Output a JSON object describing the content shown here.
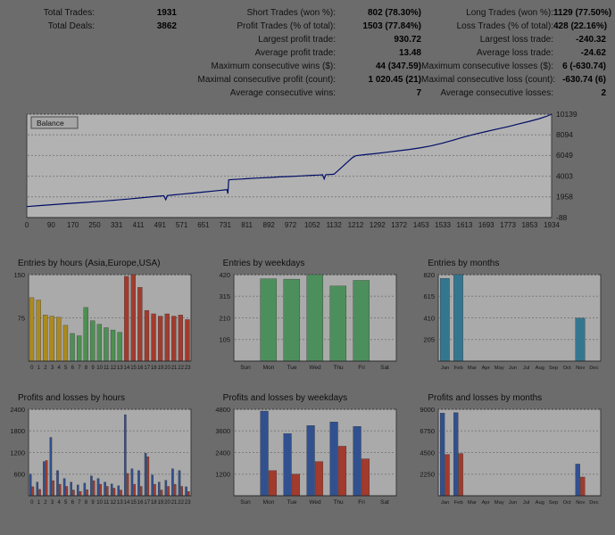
{
  "report": {
    "stats_rows": [
      {
        "l1": "Total Trades:",
        "v1": "1931",
        "l2": "Short Trades (won %):",
        "v2": "802 (78.30%)",
        "l3": "Long Trades (won %):",
        "v3": "1129 (77.50%)"
      },
      {
        "l1": "Total Deals:",
        "v1": "3862",
        "l2": "Profit Trades (% of total):",
        "v2": "1503 (77.84%)",
        "l3": "Loss Trades (% of total):",
        "v3": "428 (22.16%)"
      },
      {
        "l1": "",
        "v1": "",
        "l2": "Largest profit trade:",
        "v2": "930.72",
        "l3": "Largest loss trade:",
        "v3": "-240.32"
      },
      {
        "l1": "",
        "v1": "",
        "l2": "Average profit trade:",
        "v2": "13.48",
        "l3": "Average loss trade:",
        "v3": "-24.62"
      },
      {
        "l1": "",
        "v1": "",
        "l2": "Maximum consecutive wins ($):",
        "v2": "44 (347.59)",
        "l3": "Maximum consecutive losses ($):",
        "v3": "6 (-630.74)"
      },
      {
        "l1": "",
        "v1": "",
        "l2": "Maximal consecutive profit (count):",
        "v2": "1 020.45 (21)",
        "l3": "Maximal consecutive loss (count):",
        "v3": "-630.74 (6)"
      },
      {
        "l1": "",
        "v1": "",
        "l2": "Average consecutive wins:",
        "v2": "7",
        "l3": "Average consecutive losses:",
        "v3": "2"
      }
    ]
  },
  "chart_data": [
    {
      "type": "line",
      "title": "Balance",
      "legend": "Balance",
      "line_color": "#000d66",
      "xlim": [
        0,
        1934
      ],
      "ylim": [
        -88,
        10139
      ],
      "x_ticks": [
        0,
        90,
        170,
        250,
        331,
        411,
        491,
        571,
        651,
        731,
        811,
        892,
        972,
        1052,
        1132,
        1212,
        1292,
        1372,
        1453,
        1533,
        1613,
        1693,
        1773,
        1853,
        1934
      ],
      "y_ticks": [
        -88,
        1958,
        4003,
        6049,
        8094,
        10139
      ],
      "points": [
        [
          0,
          1000
        ],
        [
          45,
          1090
        ],
        [
          90,
          1180
        ],
        [
          135,
          1270
        ],
        [
          170,
          1330
        ],
        [
          210,
          1400
        ],
        [
          250,
          1480
        ],
        [
          290,
          1560
        ],
        [
          331,
          1650
        ],
        [
          370,
          1740
        ],
        [
          411,
          1840
        ],
        [
          450,
          1940
        ],
        [
          470,
          1990
        ],
        [
          491,
          2040
        ],
        [
          505,
          2070
        ],
        [
          512,
          1680
        ],
        [
          518,
          2090
        ],
        [
          540,
          2150
        ],
        [
          571,
          2230
        ],
        [
          610,
          2330
        ],
        [
          651,
          2430
        ],
        [
          690,
          2540
        ],
        [
          720,
          2620
        ],
        [
          731,
          2650
        ],
        [
          738,
          2660
        ],
        [
          741,
          2280
        ],
        [
          744,
          3640
        ],
        [
          760,
          3680
        ],
        [
          790,
          3720
        ],
        [
          811,
          3760
        ],
        [
          850,
          3820
        ],
        [
          892,
          3870
        ],
        [
          930,
          3930
        ],
        [
          972,
          3980
        ],
        [
          1010,
          4030
        ],
        [
          1052,
          4090
        ],
        [
          1075,
          4120
        ],
        [
          1090,
          4140
        ],
        [
          1096,
          3730
        ],
        [
          1102,
          4150
        ],
        [
          1132,
          4200
        ],
        [
          1150,
          4620
        ],
        [
          1168,
          5060
        ],
        [
          1185,
          5480
        ],
        [
          1200,
          5840
        ],
        [
          1212,
          6020
        ],
        [
          1240,
          6120
        ],
        [
          1292,
          6260
        ],
        [
          1340,
          6420
        ],
        [
          1372,
          6520
        ],
        [
          1410,
          6650
        ],
        [
          1453,
          6820
        ],
        [
          1490,
          7000
        ],
        [
          1533,
          7280
        ],
        [
          1570,
          7560
        ],
        [
          1613,
          7900
        ],
        [
          1650,
          8150
        ],
        [
          1693,
          8420
        ],
        [
          1730,
          8650
        ],
        [
          1773,
          8900
        ],
        [
          1810,
          9150
        ],
        [
          1853,
          9430
        ],
        [
          1890,
          9700
        ],
        [
          1915,
          9920
        ],
        [
          1934,
          10139
        ]
      ]
    },
    {
      "type": "bar",
      "title": "Entries by hours (Asia,Europe,USA)",
      "ylim": [
        0,
        150
      ],
      "y_ticks": [
        75,
        150
      ],
      "categories": [
        "0",
        "1",
        "2",
        "3",
        "4",
        "5",
        "6",
        "7",
        "8",
        "9",
        "10",
        "11",
        "12",
        "13",
        "14",
        "15",
        "16",
        "17",
        "18",
        "19",
        "20",
        "21",
        "22",
        "23"
      ],
      "values": [
        110,
        106,
        80,
        78,
        76,
        62,
        48,
        44,
        93,
        70,
        64,
        58,
        54,
        50,
        147,
        150,
        128,
        88,
        82,
        78,
        82,
        78,
        80,
        72
      ],
      "bar_colors": [
        "#ab8a1f",
        "#ab8a1f",
        "#ab8a1f",
        "#ab8a1f",
        "#ab8a1f",
        "#ab8a1f",
        "#4d8f52",
        "#4d8f52",
        "#4d8f52",
        "#4d8f52",
        "#4d8f52",
        "#4d8f52",
        "#4d8f52",
        "#4d8f52",
        "#a23b2d",
        "#a23b2d",
        "#a23b2d",
        "#a23b2d",
        "#a23b2d",
        "#a23b2d",
        "#a23b2d",
        "#a23b2d",
        "#a23b2d",
        "#a23b2d"
      ]
    },
    {
      "type": "bar",
      "title": "Entries by weekdays",
      "ylim": [
        0,
        420
      ],
      "y_ticks": [
        105,
        210,
        315,
        420
      ],
      "categories": [
        "Sun",
        "Mon",
        "Tue",
        "Wed",
        "Thu",
        "Fri",
        "Sat"
      ],
      "values": [
        0,
        400,
        398,
        420,
        365,
        392,
        0
      ],
      "color": "#4d8f5c"
    },
    {
      "type": "bar",
      "title": "Entries by months",
      "ylim": [
        0,
        820
      ],
      "y_ticks": [
        205,
        410,
        615,
        820
      ],
      "categories": [
        "Jan",
        "Feb",
        "Mar",
        "Apr",
        "May",
        "Jun",
        "Jul",
        "Aug",
        "Sep",
        "Oct",
        "Nov",
        "Dec"
      ],
      "values": [
        785,
        820,
        0,
        0,
        0,
        0,
        0,
        0,
        0,
        0,
        408,
        0
      ],
      "color": "#35768f"
    },
    {
      "type": "bar",
      "title": "Profits and losses by hours",
      "ylim": [
        0,
        2400
      ],
      "y_ticks": [
        600,
        1200,
        1800,
        2400
      ],
      "categories": [
        "0",
        "1",
        "2",
        "3",
        "4",
        "5",
        "6",
        "7",
        "8",
        "9",
        "10",
        "11",
        "12",
        "13",
        "14",
        "15",
        "16",
        "17",
        "18",
        "19",
        "20",
        "21",
        "22",
        "23"
      ],
      "series": [
        {
          "name": "Profit",
          "color": "#31508f",
          "values": [
            600,
            380,
            950,
            1620,
            700,
            480,
            380,
            300,
            350,
            550,
            480,
            380,
            330,
            280,
            2250,
            750,
            700,
            1180,
            580,
            380,
            430,
            750,
            700,
            250
          ]
        },
        {
          "name": "Loss",
          "color": "#a23b2d",
          "values": [
            250,
            180,
            980,
            420,
            320,
            260,
            160,
            120,
            170,
            420,
            320,
            260,
            210,
            160,
            620,
            320,
            260,
            1080,
            320,
            160,
            260,
            320,
            260,
            120
          ]
        }
      ]
    },
    {
      "type": "bar",
      "title": "Profits and losses by weekdays",
      "ylim": [
        0,
        4800
      ],
      "y_ticks": [
        1200,
        2400,
        3600,
        4800
      ],
      "categories": [
        "Sun",
        "Mon",
        "Tue",
        "Wed",
        "Thu",
        "Fri",
        "Sat"
      ],
      "series": [
        {
          "name": "Profit",
          "color": "#31508f",
          "values": [
            0,
            4700,
            3450,
            3900,
            4100,
            3850,
            0
          ]
        },
        {
          "name": "Loss",
          "color": "#a23b2d",
          "values": [
            0,
            1400,
            1200,
            1900,
            2750,
            2050,
            0
          ]
        }
      ]
    },
    {
      "type": "bar",
      "title": "Profits and losses by months",
      "ylim": [
        0,
        9000
      ],
      "y_ticks": [
        2250,
        4500,
        6750,
        9000
      ],
      "categories": [
        "Jan",
        "Feb",
        "Mar",
        "Apr",
        "May",
        "Jun",
        "Jul",
        "Aug",
        "Sep",
        "Oct",
        "Nov",
        "Dec"
      ],
      "series": [
        {
          "name": "Profit",
          "color": "#31508f",
          "values": [
            8600,
            8650,
            0,
            0,
            0,
            0,
            0,
            0,
            0,
            0,
            3300,
            0
          ]
        },
        {
          "name": "Loss",
          "color": "#a23b2d",
          "values": [
            4300,
            4400,
            0,
            0,
            0,
            0,
            0,
            0,
            0,
            0,
            1950,
            0
          ]
        }
      ]
    }
  ]
}
